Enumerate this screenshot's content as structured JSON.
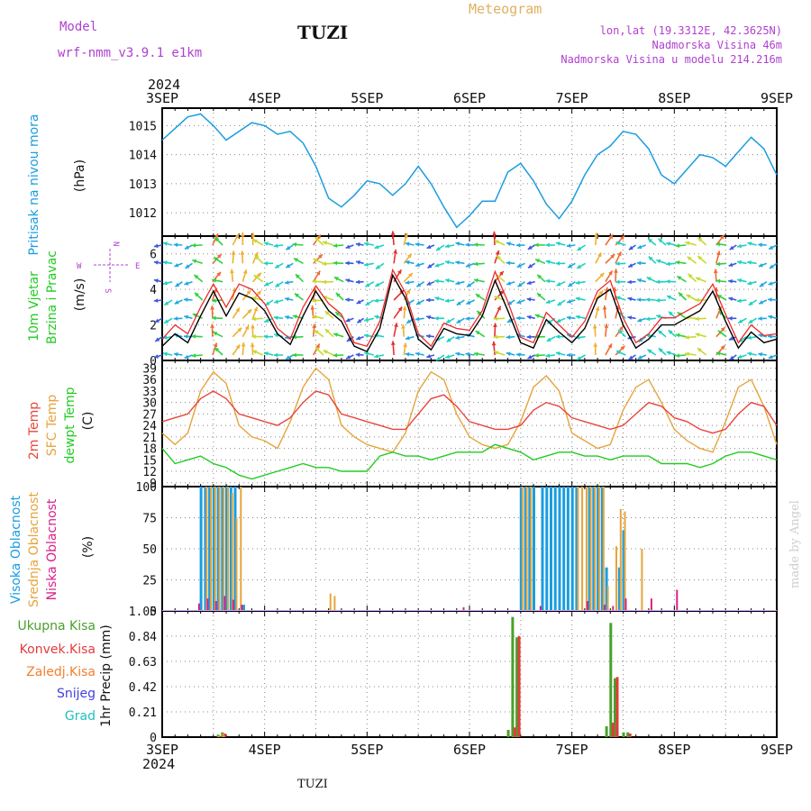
{
  "header": {
    "model_label": "Model",
    "model_name": "wrf-nmm_v3.9.1 e1km",
    "station": "TUZI",
    "product": "Meteogram",
    "lonlat": "lon,lat (19.3312E, 42.3625N)",
    "elevation": "Nadmorska Visina 46m",
    "model_elevation": "Nadmorska Visina u modelu 214.216m",
    "year": "2024",
    "footer_station": "TUZI",
    "credit": "made by Angel"
  },
  "colors": {
    "pressure": "#1a9de0",
    "wind_speed": "#000000",
    "wind_gust": "#ee2b2b",
    "temp2m": "#e8453c",
    "sfc_temp": "#e6a43c",
    "dewpoint": "#22cc22",
    "cloud_high": "#1a9de0",
    "cloud_mid": "#e6a43c",
    "cloud_low": "#d9208a",
    "precip_total": "#4aa02c",
    "precip_conv": "#e43b3b",
    "precip_frozen": "#f08030",
    "snow": "#4040e0",
    "graupel": "#20c0c0",
    "label_purple": "#b040d0",
    "label_orange": "#e0b060"
  },
  "chart_data": [
    {
      "type": "line",
      "panel": "pressure",
      "ylabel_main": "Pritisak na nivou mora",
      "ylabel_unit": "(hPa)",
      "x_ticks": [
        "3SEP",
        "4SEP",
        "5SEP",
        "6SEP",
        "7SEP",
        "8SEP",
        "9SEP"
      ],
      "ylim": [
        1011.2,
        1015.6
      ],
      "y_ticks": [
        1012,
        1013,
        1014,
        1015
      ],
      "grid": true,
      "x_hours": [
        0,
        3,
        6,
        9,
        12,
        15,
        18,
        21,
        24,
        27,
        30,
        33,
        36,
        39,
        42,
        45,
        48,
        51,
        54,
        57,
        60,
        63,
        66,
        69,
        72,
        75,
        78,
        81,
        84,
        87,
        90,
        93,
        96,
        99,
        102,
        105,
        108,
        111,
        114,
        117,
        120,
        123,
        126,
        129,
        132,
        135,
        138,
        141,
        144
      ],
      "series": [
        {
          "values": [
            1014.5,
            1014.9,
            1015.3,
            1015.4,
            1015.0,
            1014.5,
            1014.8,
            1015.1,
            1015.0,
            1014.7,
            1014.8,
            1014.4,
            1013.6,
            1012.5,
            1012.2,
            1012.6,
            1013.1,
            1013.0,
            1012.6,
            1013.0,
            1013.6,
            1013.0,
            1012.2,
            1011.5,
            1011.9,
            1012.4,
            1012.4,
            1013.4,
            1013.7,
            1013.1,
            1012.3,
            1011.8,
            1012.4,
            1013.3,
            1014.0,
            1014.3,
            1014.8,
            1014.7,
            1014.2,
            1013.3,
            1013.0,
            1013.5,
            1014.0,
            1013.9,
            1013.6,
            1014.1,
            1014.6,
            1014.2,
            1013.3
          ]
        }
      ]
    },
    {
      "type": "line",
      "panel": "wind",
      "ylabel_main": "10m Vjetar",
      "ylabel_main2": "Brzina i Pravac",
      "ylabel_unit": "(m/s)",
      "compass": {
        "n": "N",
        "s": "S",
        "w": "W",
        "e": "E"
      },
      "ylim": [
        0,
        7
      ],
      "y_ticks": [
        0,
        2,
        4,
        6
      ],
      "grid": true,
      "x_hours": [
        0,
        3,
        6,
        9,
        12,
        15,
        18,
        21,
        24,
        27,
        30,
        33,
        36,
        39,
        42,
        45,
        48,
        51,
        54,
        57,
        60,
        63,
        66,
        69,
        72,
        75,
        78,
        81,
        84,
        87,
        90,
        93,
        96,
        99,
        102,
        105,
        108,
        111,
        114,
        117,
        120,
        123,
        126,
        129,
        132,
        135,
        138,
        141,
        144
      ],
      "series": [
        {
          "values": [
            0.8,
            1.5,
            1.0,
            2.5,
            3.9,
            2.5,
            3.8,
            3.5,
            2.8,
            1.5,
            0.9,
            2.5,
            3.9,
            2.8,
            2.2,
            0.8,
            0.5,
            1.8,
            4.8,
            3.5,
            1.2,
            0.6,
            1.8,
            1.5,
            1.4,
            2.5,
            4.5,
            2.8,
            1.0,
            0.7,
            2.3,
            1.6,
            1.0,
            1.8,
            3.5,
            4.0,
            2.0,
            0.7,
            1.2,
            2.0,
            2.0,
            2.4,
            2.8,
            3.9,
            2.2,
            0.7,
            1.6,
            1.0,
            1.2
          ]
        },
        {
          "values": [
            1.2,
            2.0,
            1.5,
            3.0,
            4.3,
            3.0,
            4.3,
            4.0,
            3.2,
            1.8,
            1.2,
            3.0,
            4.2,
            3.2,
            2.6,
            1.0,
            0.8,
            2.2,
            5.1,
            3.8,
            1.5,
            0.8,
            2.1,
            1.8,
            1.7,
            2.8,
            5.0,
            3.3,
            1.3,
            1.0,
            2.7,
            2.0,
            1.3,
            2.2,
            3.9,
            4.5,
            2.4,
            1.0,
            1.5,
            2.4,
            2.4,
            2.8,
            3.2,
            4.3,
            2.6,
            1.0,
            2.0,
            1.4,
            1.5
          ]
        }
      ]
    },
    {
      "type": "line",
      "panel": "temperature",
      "ylabel_a": "2m Temp",
      "ylabel_b": "SFC Temp",
      "ylabel_c": "dewpt Temp",
      "ylabel_unit": "(C)",
      "ylim": [
        8,
        41
      ],
      "y_ticks": [
        9,
        12,
        15,
        18,
        21,
        24,
        27,
        30,
        33,
        36,
        39
      ],
      "grid": true,
      "x_hours": [
        0,
        3,
        6,
        9,
        12,
        15,
        18,
        21,
        24,
        27,
        30,
        33,
        36,
        39,
        42,
        45,
        48,
        51,
        54,
        57,
        60,
        63,
        66,
        69,
        72,
        75,
        78,
        81,
        84,
        87,
        90,
        93,
        96,
        99,
        102,
        105,
        108,
        111,
        114,
        117,
        120,
        123,
        126,
        129,
        132,
        135,
        138,
        141,
        144
      ],
      "series": [
        {
          "values": [
            25,
            26,
            27,
            31,
            33,
            31,
            27,
            26,
            25,
            24,
            26,
            30,
            33,
            32,
            27,
            26,
            25,
            24,
            23,
            23,
            27,
            31,
            32,
            29,
            25,
            24,
            23,
            23,
            24,
            28,
            30,
            29,
            26,
            25,
            24,
            23,
            24,
            27,
            30,
            29,
            26,
            25,
            23,
            22,
            23,
            27,
            30,
            29,
            24
          ]
        },
        {
          "values": [
            22,
            19,
            22,
            33,
            38,
            35,
            24,
            21,
            20,
            18,
            25,
            34,
            39,
            36,
            24,
            21,
            19,
            18,
            17,
            22,
            33,
            38,
            36,
            27,
            21,
            19,
            18,
            19,
            25,
            34,
            37,
            33,
            22,
            20,
            18,
            19,
            28,
            34,
            36,
            30,
            23,
            20,
            18,
            17,
            25,
            34,
            36,
            29,
            19
          ]
        },
        {
          "values": [
            18,
            14,
            15,
            16,
            14,
            13,
            11,
            10,
            11,
            12,
            13,
            14,
            13,
            13,
            12,
            12,
            12,
            16,
            17,
            16,
            16,
            15,
            16,
            17,
            17,
            17,
            19,
            18,
            17,
            15,
            16,
            17,
            17,
            16,
            16,
            15,
            16,
            16,
            16,
            14,
            14,
            14,
            13,
            14,
            16,
            17,
            17,
            16,
            15
          ]
        }
      ]
    },
    {
      "type": "bar",
      "panel": "clouds",
      "ylabel_a": "Visoka Oblacnost",
      "ylabel_b": "Srednja Oblacnost",
      "ylabel_c": "Niska Oblacnost",
      "ylabel_unit": "(%)",
      "ylim": [
        0,
        100
      ],
      "y_ticks": [
        0,
        25,
        50,
        75,
        100
      ],
      "grid": true,
      "series": [
        {
          "hours": [
            9,
            10,
            11,
            12,
            13,
            14,
            15,
            16,
            17,
            19,
            84,
            85,
            86,
            87,
            89,
            90,
            91,
            92,
            93,
            94,
            95,
            96,
            97,
            100,
            101,
            102,
            103,
            104,
            107,
            108
          ],
          "values": [
            100,
            100,
            100,
            100,
            100,
            100,
            100,
            100,
            100,
            5,
            100,
            100,
            100,
            100,
            100,
            100,
            100,
            100,
            100,
            100,
            100,
            100,
            100,
            100,
            100,
            100,
            100,
            35,
            35,
            65
          ]
        },
        {
          "hours": [
            10,
            11,
            12,
            13,
            14,
            15,
            16,
            17,
            18,
            39,
            40,
            84,
            85,
            86,
            97,
            98,
            99,
            100,
            101,
            102,
            103,
            104,
            106,
            107,
            108,
            112
          ],
          "values": [
            100,
            100,
            100,
            100,
            100,
            100,
            95,
            75,
            100,
            14,
            12,
            100,
            100,
            100,
            100,
            100,
            100,
            100,
            100,
            100,
            100,
            20,
            52,
            82,
            80,
            50
          ]
        },
        {
          "hours": [
            8,
            10,
            12,
            14,
            16,
            18,
            70,
            88,
            99,
            103,
            105,
            108,
            114,
            120
          ],
          "values": [
            6,
            10,
            8,
            12,
            9,
            5,
            3,
            4,
            8,
            5,
            4,
            10,
            10,
            17
          ]
        }
      ]
    },
    {
      "type": "bar",
      "panel": "precipitation",
      "legend": [
        "Ukupna Kisa",
        "Konvek.Kisa",
        "Zaledj.Kisa",
        "Snijeg",
        "Grad"
      ],
      "ylabel_unit": "1hr Precip (mm)",
      "ylim": [
        0,
        1.05
      ],
      "y_ticks": [
        0,
        0.21,
        0.42,
        0.63,
        0.84,
        1.05
      ],
      "y_tick_labels": [
        "0",
        "0.21",
        "0.42",
        "0.63",
        "0.84",
        "1.05"
      ],
      "grid": true,
      "x_ticks": [
        "3SEP",
        "4SEP",
        "5SEP",
        "6SEP",
        "7SEP",
        "8SEP",
        "9SEP"
      ],
      "series": [
        {
          "hours": [
            13,
            14,
            81,
            82,
            83,
            104,
            105,
            106,
            108,
            109
          ],
          "values": [
            0.02,
            0.04,
            0.06,
            1.0,
            0.83,
            0.09,
            0.95,
            0.49,
            0.04,
            0.04
          ]
        },
        {
          "hours": [
            14,
            82,
            83,
            105,
            106,
            109
          ],
          "values": [
            0.03,
            0.08,
            0.84,
            0.12,
            0.5,
            0.03
          ]
        },
        {
          "hours": [
            13,
            14
          ],
          "values": [
            0.01,
            0.03
          ]
        }
      ]
    }
  ]
}
